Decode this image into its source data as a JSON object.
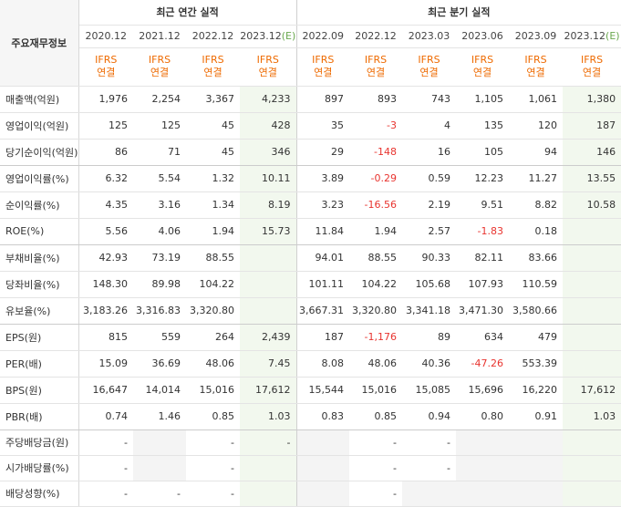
{
  "header": {
    "corner_label": "주요재무정보",
    "annual_group": "최근 연간 실적",
    "quarter_group": "최근 분기 실적",
    "periods": [
      {
        "label": "2020.12",
        "est": false
      },
      {
        "label": "2021.12",
        "est": false
      },
      {
        "label": "2022.12",
        "est": false
      },
      {
        "label": "2023.12",
        "est": true
      },
      {
        "label": "2022.09",
        "est": false
      },
      {
        "label": "2022.12",
        "est": false
      },
      {
        "label": "2023.03",
        "est": false
      },
      {
        "label": "2023.06",
        "est": false
      },
      {
        "label": "2023.09",
        "est": false
      },
      {
        "label": "2023.12",
        "est": true
      }
    ],
    "est_mark": "(E)",
    "ifrs_line1": "IFRS",
    "ifrs_line2": "연결"
  },
  "rows": [
    {
      "label": "매출액(억원)",
      "values": [
        "1,976",
        "2,254",
        "3,367",
        "4,233",
        "897",
        "893",
        "743",
        "1,105",
        "1,061",
        "1,380"
      ]
    },
    {
      "label": "영업이익(억원)",
      "values": [
        "125",
        "125",
        "45",
        "428",
        "35",
        "-3",
        "4",
        "135",
        "120",
        "187"
      ]
    },
    {
      "label": "당기순이익(억원)",
      "values": [
        "86",
        "71",
        "45",
        "346",
        "29",
        "-148",
        "16",
        "105",
        "94",
        "146"
      ]
    },
    {
      "label": "영업이익률(%)",
      "values": [
        "6.32",
        "5.54",
        "1.32",
        "10.11",
        "3.89",
        "-0.29",
        "0.59",
        "12.23",
        "11.27",
        "13.55"
      ]
    },
    {
      "label": "순이익률(%)",
      "values": [
        "4.35",
        "3.16",
        "1.34",
        "8.19",
        "3.23",
        "-16.56",
        "2.19",
        "9.51",
        "8.82",
        "10.58"
      ]
    },
    {
      "label": "ROE(%)",
      "values": [
        "5.56",
        "4.06",
        "1.94",
        "15.73",
        "11.84",
        "1.94",
        "2.57",
        "-1.83",
        "0.18",
        ""
      ]
    },
    {
      "label": "부채비율(%)",
      "values": [
        "42.93",
        "73.19",
        "88.55",
        "",
        "94.01",
        "88.55",
        "90.33",
        "82.11",
        "83.66",
        ""
      ]
    },
    {
      "label": "당좌비율(%)",
      "values": [
        "148.30",
        "89.98",
        "104.22",
        "",
        "101.11",
        "104.22",
        "105.68",
        "107.93",
        "110.59",
        ""
      ]
    },
    {
      "label": "유보율(%)",
      "values": [
        "3,183.26",
        "3,316.83",
        "3,320.80",
        "",
        "3,667.31",
        "3,320.80",
        "3,341.18",
        "3,471.30",
        "3,580.66",
        ""
      ]
    },
    {
      "label": "EPS(원)",
      "values": [
        "815",
        "559",
        "264",
        "2,439",
        "187",
        "-1,176",
        "89",
        "634",
        "479",
        ""
      ]
    },
    {
      "label": "PER(배)",
      "values": [
        "15.09",
        "36.69",
        "48.06",
        "7.45",
        "8.08",
        "48.06",
        "40.36",
        "-47.26",
        "553.39",
        ""
      ]
    },
    {
      "label": "BPS(원)",
      "values": [
        "16,647",
        "14,014",
        "15,016",
        "17,612",
        "15,544",
        "15,016",
        "15,085",
        "15,696",
        "16,220",
        "17,612"
      ]
    },
    {
      "label": "PBR(배)",
      "values": [
        "0.74",
        "1.46",
        "0.85",
        "1.03",
        "0.83",
        "0.85",
        "0.94",
        "0.80",
        "0.91",
        "1.03"
      ]
    },
    {
      "label": "주당배당금(원)",
      "values": [
        "-",
        "",
        "-",
        "-",
        "",
        "-",
        "-",
        "",
        "",
        ""
      ]
    },
    {
      "label": "시가배당률(%)",
      "values": [
        "-",
        "",
        "-",
        "",
        "",
        "-",
        "-",
        "",
        "",
        ""
      ]
    },
    {
      "label": "배당성향(%)",
      "values": [
        "-",
        "-",
        "-",
        "",
        "",
        "-",
        "",
        "",
        "",
        ""
      ]
    }
  ],
  "colors": {
    "negative": "#e8342f",
    "ifrs": "#ee6a00",
    "estimate_bg": "#f2f8ee",
    "empty_bg": "#f4f4f4"
  }
}
